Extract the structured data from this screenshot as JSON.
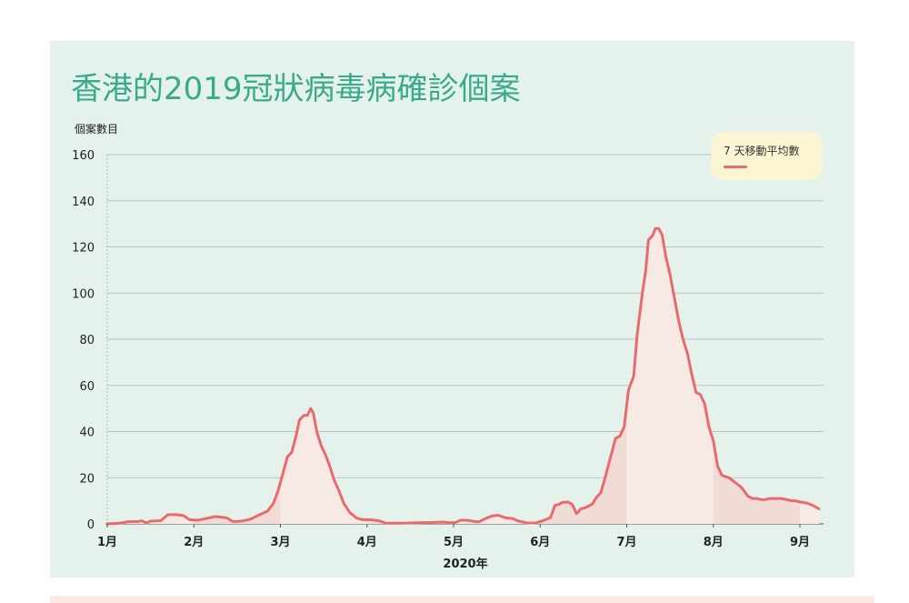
{
  "title": "香港的2019冠狀病毒病確診個案",
  "chart_data": {
    "type": "area",
    "title": "香港的2019冠狀病毒病確診個案",
    "ylabel": "個案數目",
    "xlabel": "2020年",
    "ylim": [
      0,
      160
    ],
    "yticks": [
      0,
      20,
      40,
      60,
      80,
      100,
      120,
      140,
      160
    ],
    "xlim": [
      0,
      8.3
    ],
    "month_ticks": [
      {
        "label": "1月",
        "x": 0
      },
      {
        "label": "2月",
        "x": 1
      },
      {
        "label": "3月",
        "x": 2
      },
      {
        "label": "4月",
        "x": 3
      },
      {
        "label": "5月",
        "x": 4
      },
      {
        "label": "6月",
        "x": 5
      },
      {
        "label": "7月",
        "x": 6
      },
      {
        "label": "8月",
        "x": 7
      },
      {
        "label": "9月",
        "x": 8
      }
    ],
    "legend": {
      "position": "top-right"
    },
    "grid": true,
    "series": [
      {
        "name": "7 天移動平均數",
        "color": "#e86a6f",
        "points": [
          [
            0.0,
            0
          ],
          [
            0.15,
            0.3
          ],
          [
            0.25,
            1
          ],
          [
            0.35,
            1
          ],
          [
            0.4,
            1.3
          ],
          [
            0.45,
            0.4
          ],
          [
            0.5,
            1.2
          ],
          [
            0.62,
            1.4
          ],
          [
            0.7,
            4
          ],
          [
            0.8,
            4
          ],
          [
            0.88,
            3.6
          ],
          [
            0.95,
            1.8
          ],
          [
            1.05,
            1.6
          ],
          [
            1.15,
            2.4
          ],
          [
            1.25,
            3.2
          ],
          [
            1.38,
            2.6
          ],
          [
            1.45,
            1.0
          ],
          [
            1.55,
            1.2
          ],
          [
            1.65,
            2.0
          ],
          [
            1.75,
            3.8
          ],
          [
            1.85,
            5.5
          ],
          [
            1.92,
            9
          ],
          [
            1.97,
            14
          ],
          [
            2.03,
            22
          ],
          [
            2.08,
            29
          ],
          [
            2.13,
            31
          ],
          [
            2.18,
            38
          ],
          [
            2.22,
            45
          ],
          [
            2.27,
            47
          ],
          [
            2.31,
            47
          ],
          [
            2.35,
            50
          ],
          [
            2.38,
            48
          ],
          [
            2.42,
            40
          ],
          [
            2.47,
            34
          ],
          [
            2.52,
            30
          ],
          [
            2.57,
            25
          ],
          [
            2.62,
            19
          ],
          [
            2.68,
            14
          ],
          [
            2.73,
            9
          ],
          [
            2.8,
            5
          ],
          [
            2.88,
            2.5
          ],
          [
            2.95,
            1.8
          ],
          [
            3.05,
            1.8
          ],
          [
            3.15,
            1.2
          ],
          [
            3.22,
            0.3
          ],
          [
            3.4,
            0.3
          ],
          [
            3.6,
            0.5
          ],
          [
            3.75,
            0.6
          ],
          [
            3.88,
            0.8
          ],
          [
            3.95,
            0.5
          ],
          [
            4.02,
            0.6
          ],
          [
            4.08,
            1.6
          ],
          [
            4.15,
            1.6
          ],
          [
            4.25,
            1.0
          ],
          [
            4.3,
            1.0
          ],
          [
            4.38,
            2.5
          ],
          [
            4.45,
            3.5
          ],
          [
            4.52,
            3.7
          ],
          [
            4.6,
            2.6
          ],
          [
            4.68,
            2.3
          ],
          [
            4.75,
            1.2
          ],
          [
            4.85,
            0.4
          ],
          [
            4.95,
            0.4
          ],
          [
            5.05,
            1.6
          ],
          [
            5.12,
            2.8
          ],
          [
            5.17,
            8
          ],
          [
            5.22,
            8.5
          ],
          [
            5.25,
            9.2
          ],
          [
            5.32,
            9.5
          ],
          [
            5.37,
            8.5
          ],
          [
            5.42,
            4.4
          ],
          [
            5.47,
            6.5
          ],
          [
            5.52,
            7
          ],
          [
            5.6,
            8.5
          ],
          [
            5.65,
            11.5
          ],
          [
            5.7,
            13.5
          ],
          [
            5.75,
            20
          ],
          [
            5.82,
            30
          ],
          [
            5.87,
            37
          ],
          [
            5.92,
            38
          ],
          [
            5.97,
            42
          ],
          [
            6.02,
            58
          ],
          [
            6.08,
            64
          ],
          [
            6.12,
            82
          ],
          [
            6.18,
            100
          ],
          [
            6.22,
            110
          ],
          [
            6.25,
            123
          ],
          [
            6.3,
            125
          ],
          [
            6.33,
            128
          ],
          [
            6.37,
            128
          ],
          [
            6.41,
            125
          ],
          [
            6.45,
            116
          ],
          [
            6.5,
            108
          ],
          [
            6.55,
            98
          ],
          [
            6.6,
            88
          ],
          [
            6.65,
            80
          ],
          [
            6.7,
            74
          ],
          [
            6.75,
            65
          ],
          [
            6.8,
            57
          ],
          [
            6.85,
            56
          ],
          [
            6.9,
            52
          ],
          [
            6.95,
            42
          ],
          [
            7.0,
            36
          ],
          [
            7.05,
            25
          ],
          [
            7.1,
            21
          ],
          [
            7.18,
            20
          ],
          [
            7.25,
            18
          ],
          [
            7.32,
            16
          ],
          [
            7.4,
            12
          ],
          [
            7.45,
            11
          ],
          [
            7.5,
            11
          ],
          [
            7.55,
            10.5
          ],
          [
            7.6,
            10.5
          ],
          [
            7.65,
            11
          ],
          [
            7.7,
            11
          ],
          [
            7.78,
            11
          ],
          [
            7.85,
            10.5
          ],
          [
            7.9,
            10
          ],
          [
            7.95,
            10
          ],
          [
            8.0,
            9.5
          ],
          [
            8.08,
            9
          ],
          [
            8.15,
            8
          ],
          [
            8.22,
            6.5
          ]
        ]
      }
    ]
  }
}
